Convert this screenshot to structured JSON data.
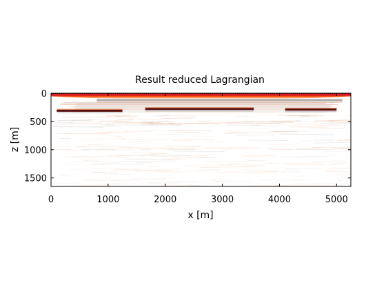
{
  "chart_data": {
    "type": "heatmap",
    "title": "Result reduced Lagrangian",
    "xlabel": "x [m]",
    "ylabel": "z [m]",
    "xlim": [
      0,
      5250
    ],
    "ylim": [
      0,
      1650
    ],
    "y_inverted": true,
    "xticks": [
      0,
      1000,
      2000,
      3000,
      4000,
      5000
    ],
    "yticks": [
      0,
      500,
      1000,
      1500
    ],
    "xtick_labels": [
      "0",
      "1000",
      "2000",
      "3000",
      "4000",
      "5000"
    ],
    "ytick_labels": [
      "0",
      "500",
      "1000",
      "1500"
    ],
    "colormap": "white-orange-red-black",
    "features": [
      {
        "name": "surface reflection",
        "z": 20,
        "x_start": 0,
        "x_end": 5250,
        "strength": 1.0,
        "color": "#d61f1f"
      },
      {
        "name": "shallow gray reflector",
        "z": 120,
        "x_start": 800,
        "x_end": 5100,
        "strength": 0.6,
        "color": "#8a8a8a"
      },
      {
        "name": "reflector segment 1",
        "z": 310,
        "x_start": 100,
        "x_end": 1250,
        "strength": 0.9,
        "color": "#5a1010"
      },
      {
        "name": "reflector segment 2",
        "z": 280,
        "x_start": 1650,
        "x_end": 3550,
        "strength": 0.9,
        "color": "#5a1010"
      },
      {
        "name": "reflector segment 3",
        "z": 290,
        "x_start": 4100,
        "x_end": 5000,
        "strength": 0.9,
        "color": "#5a1010"
      }
    ]
  }
}
